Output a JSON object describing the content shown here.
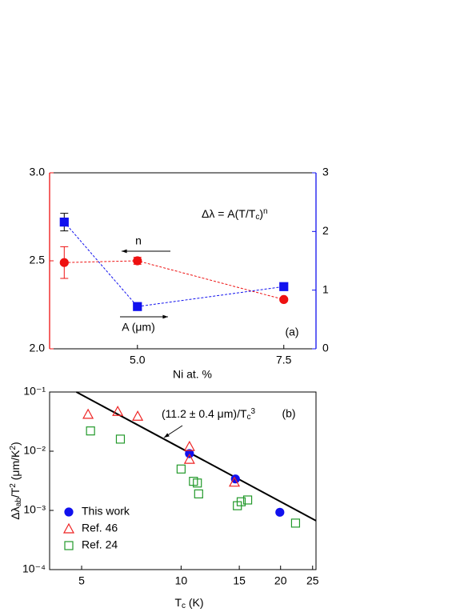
{
  "chart_data": [
    {
      "type": "line",
      "panel_label": "(a)",
      "xlabel": "Ni at. %",
      "annotation": [
        "Δλ = A(T/T",
        "c",
        ")",
        "n"
      ],
      "x": [
        3.75,
        5.0,
        7.5
      ],
      "xlim": [
        3.5,
        8.05
      ],
      "xticks": [
        {
          "value": 5,
          "label": "5.0"
        },
        7.5
      ],
      "ylim": [
        2.0,
        3.0
      ],
      "yticks": [
        {
          "value": 2,
          "label": "2.0"
        },
        2.5,
        {
          "value": 3,
          "label": "3.0"
        }
      ],
      "y2lim": [
        0,
        3
      ],
      "y2ticks": [
        0,
        1,
        2,
        3
      ],
      "series": [
        {
          "name": "n",
          "color": "#ee1111",
          "axis": "y",
          "marker": "circle",
          "values": [
            2.49,
            2.5,
            2.28
          ],
          "errors": [
            0.09,
            0.02,
            0.01
          ]
        },
        {
          "name": "A (μm)",
          "color": "#1111ee",
          "axis": "y2",
          "marker": "square",
          "values": [
            2.16,
            0.72,
            1.06
          ],
          "errors": [
            0.15,
            0,
            0
          ]
        }
      ]
    },
    {
      "type": "scatter",
      "panel_label": "(b)",
      "xlabel": [
        "T",
        "c",
        " (K)"
      ],
      "ylabel": [
        "Δλ",
        "ab",
        "/T",
        "2",
        " (μm/K",
        "2",
        ")"
      ],
      "annotation": [
        "(11.2 ± 0.4 μm)/T",
        "c",
        "3"
      ],
      "xscale": "log",
      "yscale": "log",
      "xlim": [
        4,
        25.6
      ],
      "xticks": [
        5,
        10,
        15,
        20,
        25
      ],
      "ylim": [
        0.0001,
        0.1
      ],
      "yticks": [
        {
          "value": 0.0001,
          "label": "10⁻⁴"
        },
        {
          "value": 0.001,
          "label": "10⁻³"
        },
        {
          "value": 0.01,
          "label": "10⁻²"
        },
        {
          "value": 0.1,
          "label": "10⁻¹"
        }
      ],
      "legend": "lower left",
      "fit_line": {
        "color": "#000000",
        "x": [
          4.82,
          25.6
        ],
        "values": [
          0.1,
          0.00067
        ]
      },
      "series": [
        {
          "name": "This work",
          "color": "#1111ee",
          "marker": "circle",
          "x": [
            10.6,
            14.6,
            19.9
          ],
          "values": [
            0.0091,
            0.0034,
            0.00093
          ]
        },
        {
          "name": "Ref. 46",
          "color": "#ee2222",
          "marker": "triangle",
          "x": [
            5.23,
            6.43,
            7.39,
            10.6,
            10.6,
            14.5
          ],
          "values": [
            0.042,
            0.047,
            0.039,
            0.012,
            0.0073,
            0.003
          ]
        },
        {
          "name": "Ref. 24",
          "color": "#22992a",
          "marker": "square",
          "x": [
            5.32,
            6.55,
            10.0,
            10.9,
            11.2,
            11.3,
            14.8,
            15.2,
            15.9,
            22.2
          ],
          "values": [
            0.022,
            0.016,
            0.005,
            0.0031,
            0.0029,
            0.0019,
            0.0012,
            0.0014,
            0.0015,
            0.00061
          ]
        }
      ]
    }
  ]
}
